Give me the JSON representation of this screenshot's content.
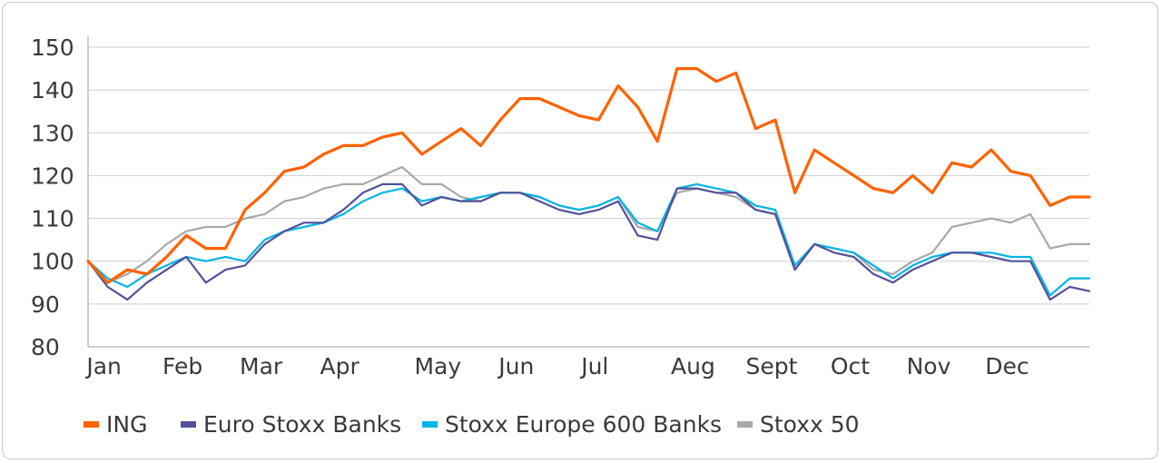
{
  "chart_data": {
    "type": "line",
    "ylim": [
      80,
      150
    ],
    "yticks": [
      80,
      90,
      100,
      110,
      120,
      130,
      140,
      150
    ],
    "x_tick_labels": [
      "Jan",
      "Feb",
      "Mar",
      "Apr",
      "May",
      "Jun",
      "Jul",
      "Aug",
      "Sept",
      "Oct",
      "Nov",
      "Dec"
    ],
    "x_tick_positions_week": [
      1,
      5,
      9,
      13,
      18,
      22,
      26,
      31,
      35,
      39,
      43,
      47
    ],
    "x_range_weeks": [
      0,
      51
    ],
    "grid": "horizontal",
    "legend_position": "bottom",
    "series": [
      {
        "name": "ING",
        "color": "#ff6200",
        "values": [
          100,
          95,
          98,
          97,
          101,
          106,
          103,
          103,
          112,
          116,
          121,
          122,
          125,
          127,
          127,
          129,
          130,
          125,
          128,
          131,
          127,
          133,
          138,
          138,
          136,
          134,
          133,
          141,
          136,
          128,
          145,
          145,
          142,
          144,
          131,
          133,
          116,
          126,
          123,
          120,
          117,
          116,
          120,
          116,
          123,
          122,
          126,
          121,
          120,
          113,
          115,
          115
        ]
      },
      {
        "name": "Euro Stoxx Banks",
        "color": "#525199",
        "values": [
          100,
          94,
          91,
          95,
          98,
          101,
          95,
          98,
          99,
          104,
          107,
          109,
          109,
          112,
          116,
          118,
          118,
          113,
          115,
          114,
          114,
          116,
          116,
          114,
          112,
          111,
          112,
          114,
          106,
          105,
          117,
          117,
          116,
          116,
          112,
          111,
          98,
          104,
          102,
          101,
          97,
          95,
          98,
          100,
          102,
          102,
          101,
          100,
          100,
          91,
          94,
          93
        ]
      },
      {
        "name": "Stoxx Europe 600 Banks",
        "color": "#00b5e5",
        "values": [
          100,
          96,
          94,
          97,
          99,
          101,
          100,
          101,
          100,
          105,
          107,
          108,
          109,
          111,
          114,
          116,
          117,
          114,
          115,
          114,
          115,
          116,
          116,
          115,
          113,
          112,
          113,
          115,
          109,
          107,
          117,
          118,
          117,
          116,
          113,
          112,
          99,
          104,
          103,
          102,
          99,
          96,
          99,
          101,
          102,
          102,
          102,
          101,
          101,
          92,
          96,
          96
        ]
      },
      {
        "name": "Stoxx 50",
        "color": "#a8a8a8",
        "values": [
          100,
          95,
          97,
          100,
          104,
          107,
          108,
          108,
          110,
          111,
          114,
          115,
          117,
          118,
          118,
          120,
          122,
          118,
          118,
          115,
          114,
          116,
          116,
          115,
          113,
          112,
          113,
          115,
          108,
          107,
          116,
          117,
          116,
          115,
          112,
          111,
          98,
          104,
          103,
          102,
          98,
          97,
          100,
          102,
          108,
          109,
          110,
          109,
          111,
          103,
          104,
          104
        ]
      }
    ]
  }
}
